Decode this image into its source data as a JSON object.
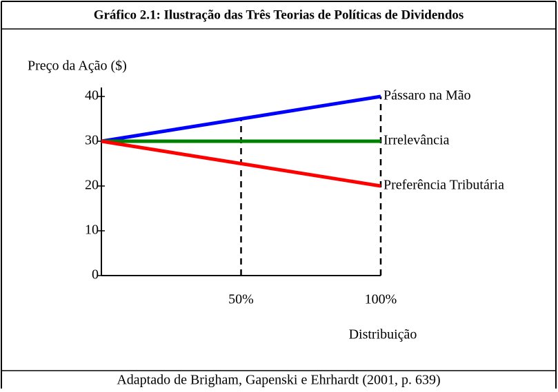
{
  "chart_data": {
    "type": "line",
    "title": "Gráfico 2.1: Ilustração das Três Teorias de Políticas de Dividendos",
    "y_label": "Preço da Ação ($)",
    "x_label": "Distribuição",
    "source": "Adaptado de Brigham, Gapenski e Ehrhardt (2001, p. 639)",
    "x": [
      0,
      50,
      100
    ],
    "series": [
      {
        "name": "Pássaro na Mão",
        "color": "#0000ff",
        "values": [
          30,
          35,
          40
        ]
      },
      {
        "name": "Irrelevância",
        "color": "#008000",
        "values": [
          30,
          30,
          30
        ]
      },
      {
        "name": "Preferência Tributária",
        "color": "#ff0000",
        "values": [
          30,
          25,
          20
        ]
      }
    ],
    "xlim": [
      0,
      100
    ],
    "xticks": [
      {
        "value": 50,
        "label": "50%"
      },
      {
        "value": 100,
        "label": "100%"
      }
    ],
    "ylim": [
      0,
      42
    ],
    "yticks": [
      0,
      10,
      20,
      30,
      40
    ]
  }
}
